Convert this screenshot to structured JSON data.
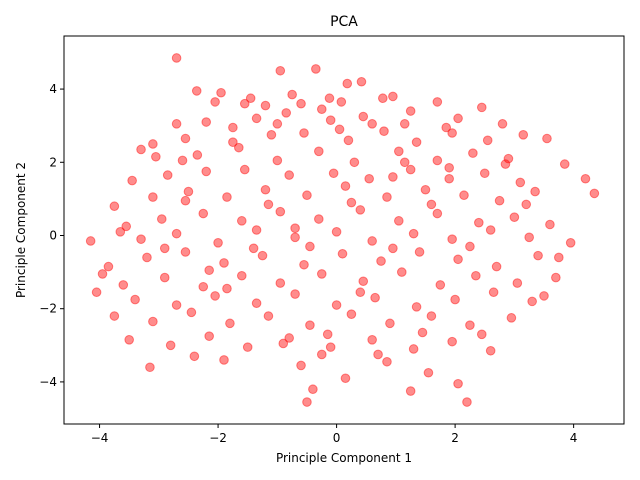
{
  "chart_data": {
    "type": "scatter",
    "title": "PCA",
    "xlabel": "Principle Component 1",
    "ylabel": "Principle Component 2",
    "xlim": [
      -4.6,
      4.85
    ],
    "ylim": [
      -5.15,
      5.45
    ],
    "xticks": [
      -4,
      -2,
      0,
      2,
      4
    ],
    "yticks": [
      -4,
      -2,
      0,
      2,
      4
    ],
    "grid": false,
    "legend": "none",
    "marker_color": "#ff0000",
    "marker_alpha": 0.45,
    "series": [
      {
        "points": [
          [
            -2.7,
            4.85
          ],
          [
            -0.35,
            4.55
          ],
          [
            -0.95,
            4.5
          ],
          [
            0.18,
            4.15
          ],
          [
            -2.36,
            3.95
          ],
          [
            -1.95,
            3.9
          ],
          [
            -0.75,
            3.85
          ],
          [
            -1.45,
            3.75
          ],
          [
            0.42,
            4.2
          ],
          [
            -0.12,
            3.75
          ],
          [
            0.95,
            3.8
          ],
          [
            1.7,
            3.65
          ],
          [
            -2.05,
            3.65
          ],
          [
            -1.55,
            3.6
          ],
          [
            -1.2,
            3.55
          ],
          [
            -0.6,
            3.6
          ],
          [
            -0.25,
            3.45
          ],
          [
            0.08,
            3.65
          ],
          [
            0.78,
            3.75
          ],
          [
            1.25,
            3.4
          ],
          [
            2.45,
            3.5
          ],
          [
            -2.7,
            3.05
          ],
          [
            -2.2,
            3.1
          ],
          [
            -1.35,
            3.2
          ],
          [
            -0.85,
            3.35
          ],
          [
            -0.1,
            3.15
          ],
          [
            0.45,
            3.25
          ],
          [
            1.15,
            3.05
          ],
          [
            2.05,
            3.2
          ],
          [
            2.8,
            3.05
          ],
          [
            -3.1,
            2.5
          ],
          [
            -2.55,
            2.65
          ],
          [
            -1.75,
            2.55
          ],
          [
            -1.1,
            2.75
          ],
          [
            -0.55,
            2.8
          ],
          [
            0.2,
            2.6
          ],
          [
            0.8,
            2.85
          ],
          [
            1.35,
            2.55
          ],
          [
            1.95,
            2.8
          ],
          [
            2.55,
            2.6
          ],
          [
            3.15,
            2.75
          ],
          [
            3.55,
            2.65
          ],
          [
            -3.05,
            2.15
          ],
          [
            -2.35,
            2.2
          ],
          [
            -1.65,
            2.4
          ],
          [
            -1.0,
            2.05
          ],
          [
            -0.3,
            2.3
          ],
          [
            0.3,
            2.0
          ],
          [
            1.05,
            2.3
          ],
          [
            1.7,
            2.05
          ],
          [
            2.3,
            2.25
          ],
          [
            2.9,
            2.1
          ],
          [
            3.85,
            1.95
          ],
          [
            -3.45,
            1.5
          ],
          [
            -2.85,
            1.65
          ],
          [
            -2.2,
            1.75
          ],
          [
            -1.55,
            1.8
          ],
          [
            -0.8,
            1.65
          ],
          [
            -0.05,
            1.7
          ],
          [
            0.55,
            1.55
          ],
          [
            1.25,
            1.8
          ],
          [
            1.9,
            1.55
          ],
          [
            2.5,
            1.7
          ],
          [
            3.1,
            1.45
          ],
          [
            4.2,
            1.55
          ],
          [
            -3.75,
            0.8
          ],
          [
            -3.1,
            1.05
          ],
          [
            -2.5,
            1.2
          ],
          [
            -1.85,
            1.05
          ],
          [
            -1.2,
            1.25
          ],
          [
            -0.5,
            1.1
          ],
          [
            0.15,
            1.35
          ],
          [
            0.85,
            1.05
          ],
          [
            1.5,
            1.25
          ],
          [
            2.15,
            1.1
          ],
          [
            2.75,
            0.95
          ],
          [
            3.35,
            1.2
          ],
          [
            4.35,
            1.15
          ],
          [
            -3.55,
            0.25
          ],
          [
            -2.95,
            0.45
          ],
          [
            -2.25,
            0.6
          ],
          [
            -1.6,
            0.4
          ],
          [
            -0.95,
            0.65
          ],
          [
            -0.3,
            0.45
          ],
          [
            0.4,
            0.7
          ],
          [
            1.05,
            0.4
          ],
          [
            1.7,
            0.6
          ],
          [
            2.4,
            0.35
          ],
          [
            3.0,
            0.5
          ],
          [
            3.6,
            0.3
          ],
          [
            -4.15,
            -0.15
          ],
          [
            -3.3,
            -0.1
          ],
          [
            -2.7,
            0.05
          ],
          [
            -2.0,
            -0.2
          ],
          [
            -1.35,
            0.15
          ],
          [
            -0.7,
            -0.05
          ],
          [
            0.0,
            0.1
          ],
          [
            0.6,
            -0.15
          ],
          [
            1.3,
            0.05
          ],
          [
            1.95,
            -0.1
          ],
          [
            2.6,
            0.15
          ],
          [
            3.25,
            -0.05
          ],
          [
            3.95,
            -0.2
          ],
          [
            -3.85,
            -0.85
          ],
          [
            -3.2,
            -0.6
          ],
          [
            -2.55,
            -0.45
          ],
          [
            -1.9,
            -0.75
          ],
          [
            -1.25,
            -0.55
          ],
          [
            -0.55,
            -0.8
          ],
          [
            0.1,
            -0.5
          ],
          [
            0.75,
            -0.7
          ],
          [
            1.4,
            -0.45
          ],
          [
            2.05,
            -0.65
          ],
          [
            2.7,
            -0.85
          ],
          [
            3.4,
            -0.55
          ],
          [
            -3.6,
            -1.35
          ],
          [
            -2.9,
            -1.15
          ],
          [
            -2.25,
            -1.4
          ],
          [
            -1.6,
            -1.1
          ],
          [
            -0.95,
            -1.3
          ],
          [
            -0.25,
            -1.05
          ],
          [
            0.45,
            -1.25
          ],
          [
            1.1,
            -1.0
          ],
          [
            1.75,
            -1.35
          ],
          [
            2.35,
            -1.1
          ],
          [
            3.05,
            -1.3
          ],
          [
            3.7,
            -1.15
          ],
          [
            -4.05,
            -1.55
          ],
          [
            -3.4,
            -1.75
          ],
          [
            -2.7,
            -1.9
          ],
          [
            -2.05,
            -1.65
          ],
          [
            -1.35,
            -1.85
          ],
          [
            -0.7,
            -1.6
          ],
          [
            0.0,
            -1.9
          ],
          [
            0.65,
            -1.7
          ],
          [
            1.35,
            -1.95
          ],
          [
            2.0,
            -1.75
          ],
          [
            2.65,
            -1.55
          ],
          [
            3.3,
            -1.8
          ],
          [
            -3.75,
            -2.2
          ],
          [
            -3.1,
            -2.35
          ],
          [
            -2.45,
            -2.1
          ],
          [
            -1.8,
            -2.4
          ],
          [
            -1.15,
            -2.2
          ],
          [
            -0.45,
            -2.45
          ],
          [
            0.25,
            -2.15
          ],
          [
            0.9,
            -2.4
          ],
          [
            1.6,
            -2.2
          ],
          [
            2.25,
            -2.45
          ],
          [
            2.95,
            -2.25
          ],
          [
            -3.5,
            -2.85
          ],
          [
            -2.8,
            -3.0
          ],
          [
            -2.15,
            -2.75
          ],
          [
            -1.5,
            -3.05
          ],
          [
            -0.8,
            -2.8
          ],
          [
            -0.1,
            -3.05
          ],
          [
            0.6,
            -2.85
          ],
          [
            1.3,
            -3.1
          ],
          [
            1.95,
            -2.9
          ],
          [
            2.6,
            -3.15
          ],
          [
            -3.15,
            -3.6
          ],
          [
            -1.9,
            -3.4
          ],
          [
            -0.6,
            -3.55
          ],
          [
            0.15,
            -3.9
          ],
          [
            0.85,
            -3.45
          ],
          [
            1.55,
            -3.75
          ],
          [
            -0.4,
            -4.2
          ],
          [
            1.25,
            -4.25
          ],
          [
            2.05,
            -4.05
          ],
          [
            -0.5,
            -4.55
          ],
          [
            2.2,
            -4.55
          ],
          [
            -2.55,
            0.95
          ],
          [
            -1.15,
            0.85
          ],
          [
            0.25,
            0.9
          ],
          [
            1.6,
            0.85
          ],
          [
            -2.15,
            -0.95
          ],
          [
            -0.45,
            -0.3
          ],
          [
            0.95,
            -0.35
          ],
          [
            2.25,
            -0.3
          ],
          [
            -1.75,
            2.95
          ],
          [
            0.6,
            3.05
          ],
          [
            -2.9,
            -0.35
          ],
          [
            3.75,
            -0.6
          ],
          [
            -0.9,
            -2.95
          ],
          [
            1.85,
            2.95
          ],
          [
            -1.4,
            -0.35
          ],
          [
            0.4,
            -1.55
          ],
          [
            2.85,
            1.95
          ],
          [
            -3.3,
            2.35
          ],
          [
            -0.15,
            -2.7
          ],
          [
            1.15,
            2.0
          ],
          [
            -2.4,
            -3.3
          ],
          [
            3.5,
            -1.65
          ],
          [
            -1.0,
            3.05
          ],
          [
            0.7,
            -3.25
          ],
          [
            -3.65,
            0.1
          ],
          [
            2.45,
            -2.7
          ],
          [
            -0.7,
            0.2
          ],
          [
            1.9,
            1.85
          ],
          [
            -2.6,
            2.05
          ],
          [
            0.05,
            2.9
          ],
          [
            3.2,
            0.85
          ],
          [
            -1.85,
            -1.45
          ],
          [
            1.45,
            -2.65
          ],
          [
            -3.95,
            -1.05
          ],
          [
            0.95,
            1.6
          ],
          [
            -0.25,
            -3.25
          ]
        ]
      }
    ]
  }
}
